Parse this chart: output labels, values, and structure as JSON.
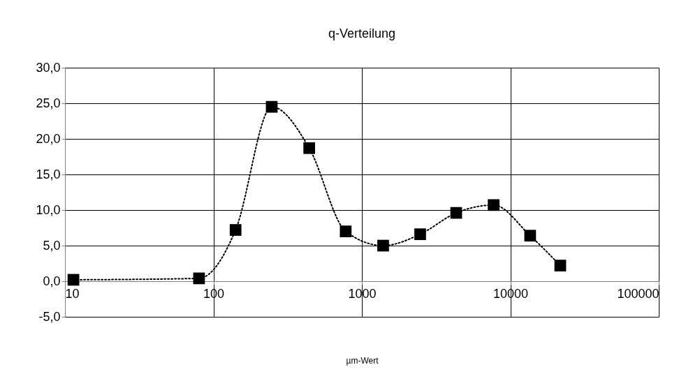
{
  "chart_data": {
    "type": "line",
    "title": "q-Verteilung",
    "xlabel": "µm-Wert",
    "x": [
      11.4,
      80,
      141,
      247,
      442,
      778,
      1391,
      2470,
      4320,
      7720,
      13600,
      21700
    ],
    "series": [
      {
        "color": "#000000",
        "values": [
          0.2,
          0.4,
          7.2,
          24.5,
          18.7,
          7.0,
          5.0,
          6.6,
          9.6,
          10.7,
          6.4,
          2.2
        ]
      }
    ],
    "log": "x",
    "xlim": [
      10,
      100000
    ],
    "xticks": [
      10,
      100,
      1000,
      10000,
      100000
    ],
    "ylim": [
      -5,
      30
    ],
    "yticks": [
      {
        "value": -5,
        "label": "-5,0"
      },
      {
        "value": 0,
        "label": "0,0"
      },
      {
        "value": 5,
        "label": "5,0"
      },
      {
        "value": 10,
        "label": "10,0"
      },
      {
        "value": 15,
        "label": "15,0"
      },
      {
        "value": 20,
        "label": "20,0"
      },
      {
        "value": 25,
        "label": "25,0"
      },
      {
        "value": 30,
        "label": "30,0"
      }
    ],
    "grid": true,
    "marker": "square",
    "line_style": "dotted"
  }
}
